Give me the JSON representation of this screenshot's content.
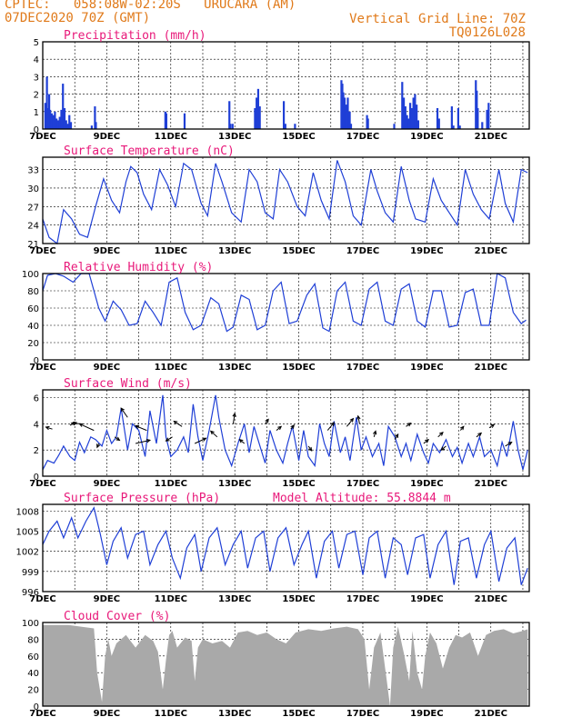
{
  "header": {
    "line1_left": "CPTEC:   058:08W-02:20S   URUCARA (AM)",
    "line2_left": "07DEC2020 70Z (GMT)",
    "line1_right": "Vertical Grid Line: 70Z",
    "line2_right": "TQ0126L028"
  },
  "colors": {
    "header": "#e07a1a",
    "title": "#e8197a",
    "series": "#1f3fd6",
    "cloud": "#a9a9a9"
  },
  "x_ticks": [
    "7DEC",
    "9DEC",
    "11DEC",
    "13DEC",
    "15DEC",
    "17DEC",
    "19DEC",
    "21DEC"
  ],
  "chart_data": [
    {
      "type": "bar",
      "title": "Precipitation (mm/h)",
      "ylim": [
        0,
        5
      ],
      "yticks": [
        0,
        1,
        2,
        3,
        4,
        5
      ],
      "x_range": [
        7,
        22.2
      ],
      "bars": [
        [
          7.05,
          1.5
        ],
        [
          7.1,
          3.0
        ],
        [
          7.13,
          1.2
        ],
        [
          7.17,
          2.0
        ],
        [
          7.2,
          1.1
        ],
        [
          7.25,
          0.9
        ],
        [
          7.3,
          0.8
        ],
        [
          7.35,
          1.0
        ],
        [
          7.4,
          0.6
        ],
        [
          7.45,
          0.5
        ],
        [
          7.5,
          0.7
        ],
        [
          7.55,
          1.1
        ],
        [
          7.6,
          2.6
        ],
        [
          7.65,
          1.2
        ],
        [
          7.7,
          0.5
        ],
        [
          7.75,
          0.3
        ],
        [
          7.8,
          0.8
        ],
        [
          7.85,
          0.4
        ],
        [
          8.5,
          0.2
        ],
        [
          8.6,
          1.3
        ],
        [
          8.63,
          0.4
        ],
        [
          10.8,
          1.0
        ],
        [
          10.83,
          0.9
        ],
        [
          11.4,
          0.9
        ],
        [
          12.8,
          1.6
        ],
        [
          12.83,
          0.3
        ],
        [
          12.9,
          0.3
        ],
        [
          13.6,
          1.2
        ],
        [
          13.65,
          1.8
        ],
        [
          13.7,
          2.3
        ],
        [
          13.75,
          1.3
        ],
        [
          14.5,
          1.6
        ],
        [
          14.55,
          0.3
        ],
        [
          14.85,
          0.3
        ],
        [
          16.3,
          2.8
        ],
        [
          16.33,
          2.6
        ],
        [
          16.36,
          2.1
        ],
        [
          16.4,
          1.8
        ],
        [
          16.43,
          1.3
        ],
        [
          16.46,
          1.4
        ],
        [
          16.5,
          1.8
        ],
        [
          16.53,
          0.9
        ],
        [
          16.56,
          1.0
        ],
        [
          16.6,
          0.3
        ],
        [
          17.1,
          0.8
        ],
        [
          17.13,
          0.6
        ],
        [
          17.95,
          0.3
        ],
        [
          18.2,
          2.7
        ],
        [
          18.25,
          1.8
        ],
        [
          18.3,
          1.3
        ],
        [
          18.35,
          0.8
        ],
        [
          18.4,
          0.6
        ],
        [
          18.45,
          1.5
        ],
        [
          18.5,
          1.2
        ],
        [
          18.55,
          1.8
        ],
        [
          18.6,
          2.0
        ],
        [
          18.65,
          1.4
        ],
        [
          18.7,
          0.5
        ],
        [
          19.3,
          1.2
        ],
        [
          19.35,
          0.6
        ],
        [
          19.75,
          1.3
        ],
        [
          19.8,
          0.2
        ],
        [
          19.95,
          1.2
        ],
        [
          20.0,
          0.2
        ],
        [
          20.5,
          2.8
        ],
        [
          20.53,
          2.2
        ],
        [
          20.56,
          1.2
        ],
        [
          20.7,
          0.4
        ],
        [
          20.85,
          1.1
        ],
        [
          20.9,
          1.5
        ]
      ]
    },
    {
      "type": "line",
      "title": "Surface Temperature (nC)",
      "ylim": [
        21,
        35
      ],
      "yticks": [
        21,
        24,
        27,
        30,
        33
      ],
      "x_range": [
        7,
        22.2
      ],
      "x": [
        7,
        7.2,
        7.45,
        7.65,
        7.9,
        8.15,
        8.4,
        8.65,
        8.9,
        9.15,
        9.4,
        9.6,
        9.75,
        9.95,
        10.15,
        10.4,
        10.65,
        10.9,
        11.15,
        11.4,
        11.65,
        11.95,
        12.15,
        12.4,
        12.6,
        12.9,
        13.2,
        13.45,
        13.7,
        13.95,
        14.2,
        14.4,
        14.65,
        14.95,
        15.2,
        15.45,
        15.7,
        15.95,
        16.2,
        16.45,
        16.7,
        16.95,
        17.25,
        17.45,
        17.7,
        17.95,
        18.2,
        18.45,
        18.65,
        18.95,
        19.2,
        19.45,
        19.7,
        19.95,
        20.2,
        20.45,
        20.7,
        20.95,
        21.25,
        21.45,
        21.7,
        21.95,
        22.15
      ],
      "y": [
        25,
        22,
        21,
        26.5,
        25,
        22.5,
        22,
        27,
        31.5,
        28,
        26,
        31,
        33.5,
        32.5,
        29,
        26.5,
        33,
        30.5,
        27,
        34,
        33,
        27.5,
        25.5,
        34,
        31,
        26,
        24.5,
        33,
        31,
        26,
        25,
        33,
        31,
        27,
        25.5,
        32.5,
        28,
        25,
        34.5,
        31,
        25.5,
        24,
        33,
        29.5,
        26,
        24.5,
        33.5,
        28,
        25,
        24.5,
        31.5,
        28,
        26,
        24,
        33,
        29,
        26.5,
        25,
        33,
        27.5,
        24.5,
        33,
        32.5
      ]
    },
    {
      "type": "line",
      "title": "Relative Humidity (%)",
      "ylim": [
        0,
        100
      ],
      "yticks": [
        0,
        20,
        40,
        60,
        80,
        100
      ],
      "x_range": [
        7,
        22.2
      ],
      "x": [
        7,
        7.15,
        7.4,
        7.65,
        7.95,
        8.2,
        8.45,
        8.75,
        8.95,
        9.2,
        9.45,
        9.7,
        9.95,
        10.2,
        10.45,
        10.7,
        10.95,
        11.2,
        11.45,
        11.7,
        11.95,
        12.25,
        12.5,
        12.75,
        12.95,
        13.2,
        13.45,
        13.7,
        13.95,
        14.2,
        14.45,
        14.7,
        14.95,
        15.25,
        15.5,
        15.75,
        15.95,
        16.2,
        16.45,
        16.7,
        16.95,
        17.2,
        17.45,
        17.7,
        17.95,
        18.2,
        18.45,
        18.7,
        18.95,
        19.2,
        19.45,
        19.7,
        19.95,
        20.2,
        20.45,
        20.7,
        20.95,
        21.2,
        21.45,
        21.7,
        21.95,
        22.1
      ],
      "y": [
        80,
        98,
        100,
        97,
        90,
        100,
        100,
        60,
        45,
        68,
        58,
        40,
        42,
        68,
        55,
        40,
        90,
        95,
        55,
        35,
        40,
        72,
        65,
        33,
        38,
        75,
        70,
        35,
        40,
        80,
        90,
        42,
        45,
        75,
        88,
        37,
        33,
        80,
        90,
        45,
        40,
        82,
        90,
        45,
        40,
        82,
        88,
        45,
        38,
        80,
        80,
        38,
        40,
        78,
        82,
        40,
        40,
        100,
        95,
        55,
        42,
        46
      ]
    },
    {
      "type": "line",
      "title": "Surface Wind (m/s)",
      "ylim": [
        0,
        6.6
      ],
      "yticks": [
        0,
        2,
        4,
        6
      ],
      "x_range": [
        7,
        22.2
      ],
      "x": [
        7,
        7.15,
        7.35,
        7.5,
        7.65,
        7.85,
        8.0,
        8.15,
        8.3,
        8.5,
        8.65,
        8.85,
        9.0,
        9.15,
        9.3,
        9.45,
        9.65,
        9.8,
        10.0,
        10.2,
        10.35,
        10.55,
        10.75,
        10.85,
        11.0,
        11.2,
        11.4,
        11.55,
        11.7,
        11.85,
        12.0,
        12.2,
        12.4,
        12.5,
        12.7,
        12.9,
        13.1,
        13.3,
        13.45,
        13.6,
        13.8,
        13.95,
        14.1,
        14.3,
        14.5,
        14.65,
        14.8,
        15.0,
        15.15,
        15.3,
        15.5,
        15.65,
        15.8,
        15.95,
        16.1,
        16.3,
        16.45,
        16.6,
        16.8,
        16.95,
        17.1,
        17.3,
        17.5,
        17.65,
        17.8,
        18.0,
        18.2,
        18.35,
        18.5,
        18.7,
        18.9,
        19.05,
        19.2,
        19.4,
        19.6,
        19.8,
        19.95,
        20.1,
        20.3,
        20.45,
        20.65,
        20.8,
        21.0,
        21.2,
        21.35,
        21.5,
        21.7,
        21.85,
        22.0,
        22.15
      ],
      "y": [
        0.5,
        1.2,
        1.0,
        1.6,
        2.3,
        1.5,
        1.2,
        2.6,
        1.8,
        3.0,
        2.8,
        2.3,
        3.5,
        2.5,
        3.0,
        5.2,
        2.0,
        4.0,
        3.5,
        1.5,
        5.0,
        2.5,
        6.2,
        3.0,
        1.5,
        2.0,
        3.0,
        1.8,
        5.5,
        3.0,
        1.2,
        3.5,
        6.2,
        4.5,
        2.0,
        0.8,
        2.5,
        4.0,
        1.8,
        3.8,
        2.2,
        1.0,
        3.5,
        2.0,
        1.0,
        2.5,
        3.8,
        1.2,
        3.5,
        1.5,
        0.8,
        4.0,
        2.5,
        1.5,
        4.2,
        1.8,
        3.0,
        1.2,
        4.5,
        2.0,
        3.0,
        1.5,
        2.5,
        0.8,
        3.8,
        3.0,
        1.5,
        2.5,
        1.2,
        3.2,
        1.8,
        1.0,
        2.5,
        1.8,
        2.8,
        1.5,
        2.2,
        1.0,
        2.5,
        1.5,
        3.0,
        1.5,
        2.0,
        0.8,
        2.6,
        1.5,
        4.2,
        2.0,
        0.5,
        2.0
      ],
      "arrows": [
        [
          7.3,
          3.6,
          -0.2,
          0.15
        ],
        [
          7.85,
          3.9,
          0.2,
          0.2
        ],
        [
          8.2,
          4.0,
          -0.3,
          0.05
        ],
        [
          8.6,
          3.5,
          -0.45,
          0.5
        ],
        [
          8.75,
          2.5,
          -0.05,
          -0.3
        ],
        [
          9.25,
          3.0,
          0.15,
          -0.25
        ],
        [
          9.65,
          4.5,
          -0.2,
          0.7
        ],
        [
          9.9,
          2.5,
          0.45,
          0.25
        ],
        [
          10.25,
          3.5,
          -0.35,
          0.35
        ],
        [
          11.05,
          3.0,
          -0.2,
          -0.3
        ],
        [
          11.35,
          3.8,
          -0.25,
          0.4
        ],
        [
          11.75,
          2.5,
          0.35,
          0.4
        ],
        [
          12.45,
          3.0,
          -0.2,
          0.45
        ],
        [
          12.95,
          4.0,
          0.05,
          0.8
        ],
        [
          13.3,
          2.5,
          -0.15,
          0.3
        ],
        [
          13.95,
          4.0,
          0.1,
          0.35
        ],
        [
          14.3,
          3.5,
          0.15,
          0.3
        ],
        [
          14.75,
          3.6,
          0.1,
          0.3
        ],
        [
          15.3,
          2.3,
          0.1,
          -0.35
        ],
        [
          15.9,
          3.5,
          0.2,
          0.6
        ],
        [
          16.5,
          3.8,
          0.2,
          0.6
        ],
        [
          16.9,
          4.0,
          -0.05,
          0.6
        ],
        [
          17.35,
          3.0,
          0.05,
          0.45
        ],
        [
          18.0,
          2.8,
          0.1,
          0.4
        ],
        [
          18.35,
          3.8,
          0.15,
          0.25
        ],
        [
          18.9,
          2.5,
          0.15,
          0.3
        ],
        [
          19.35,
          3.0,
          0.15,
          0.35
        ],
        [
          19.6,
          2.3,
          -0.15,
          -0.3
        ],
        [
          20.05,
          3.5,
          0.1,
          0.3
        ],
        [
          20.55,
          3.0,
          0.15,
          0.3
        ],
        [
          20.95,
          3.7,
          0.15,
          0.25
        ],
        [
          21.45,
          2.3,
          0.2,
          0.3
        ]
      ]
    },
    {
      "type": "line",
      "title": "Surface Pressure (hPa)",
      "annotation": "Model Altitude: 55.8844 m",
      "ylim": [
        996,
        1009
      ],
      "yticks": [
        996,
        999,
        1002,
        1005,
        1008
      ],
      "x_range": [
        7,
        22.2
      ],
      "x": [
        7,
        7.2,
        7.45,
        7.65,
        7.9,
        8.1,
        8.35,
        8.6,
        8.8,
        9.0,
        9.2,
        9.45,
        9.65,
        9.9,
        10.15,
        10.35,
        10.6,
        10.85,
        11.05,
        11.3,
        11.5,
        11.75,
        11.95,
        12.2,
        12.45,
        12.7,
        12.95,
        13.2,
        13.4,
        13.65,
        13.9,
        14.1,
        14.35,
        14.6,
        14.85,
        15.1,
        15.3,
        15.55,
        15.8,
        16.05,
        16.25,
        16.5,
        16.75,
        17.0,
        17.2,
        17.45,
        17.7,
        17.95,
        18.2,
        18.4,
        18.65,
        18.9,
        19.1,
        19.35,
        19.6,
        19.85,
        20.05,
        20.3,
        20.55,
        20.8,
        21.0,
        21.25,
        21.5,
        21.75,
        21.95,
        22.15
      ],
      "y": [
        1003,
        1005,
        1006.5,
        1004,
        1007,
        1004,
        1006.5,
        1008.5,
        1004.5,
        1000,
        1003.5,
        1005.5,
        1001,
        1004.5,
        1005,
        1000,
        1003,
        1005,
        1001,
        998,
        1002.5,
        1004.5,
        999,
        1004,
        1005.5,
        1000,
        1003,
        1005,
        999.5,
        1004,
        1005,
        999,
        1004,
        1005.5,
        1000,
        1003,
        1005,
        998,
        1003.5,
        1005,
        999.5,
        1004.5,
        1005,
        998.5,
        1004,
        1005,
        998,
        1004,
        1003,
        998.5,
        1004,
        1004.5,
        998,
        1003,
        1005,
        997,
        1003.5,
        1004,
        998,
        1003,
        1005,
        997.5,
        1002.5,
        1004,
        997,
        999.5
      ]
    },
    {
      "type": "area",
      "title": "Cloud Cover (%)",
      "ylim": [
        0,
        100
      ],
      "yticks": [
        0,
        20,
        40,
        60,
        80,
        100
      ],
      "x_range": [
        7,
        22.2
      ],
      "x": [
        7,
        7.8,
        8.6,
        8.7,
        8.85,
        8.95,
        9.05,
        9.15,
        9.3,
        9.6,
        9.9,
        10.2,
        10.45,
        10.6,
        10.75,
        10.85,
        10.95,
        11.05,
        11.2,
        11.45,
        11.65,
        11.75,
        11.85,
        12.0,
        12.3,
        12.6,
        12.85,
        13.1,
        13.4,
        13.7,
        14.0,
        14.3,
        14.6,
        14.9,
        15.3,
        15.7,
        16.1,
        16.5,
        16.85,
        17.05,
        17.2,
        17.35,
        17.55,
        17.75,
        17.85,
        17.95,
        18.1,
        18.3,
        18.45,
        18.55,
        18.7,
        18.85,
        18.95,
        19.1,
        19.3,
        19.5,
        19.7,
        19.9,
        20.1,
        20.35,
        20.6,
        20.85,
        21.1,
        21.4,
        21.7,
        22.0,
        22.15
      ],
      "y": [
        97,
        97,
        93,
        40,
        5,
        60,
        80,
        60,
        75,
        85,
        70,
        85,
        78,
        65,
        20,
        55,
        85,
        90,
        70,
        82,
        78,
        30,
        70,
        80,
        75,
        78,
        70,
        88,
        90,
        85,
        88,
        80,
        75,
        88,
        92,
        90,
        93,
        95,
        92,
        80,
        20,
        70,
        88,
        30,
        0,
        70,
        95,
        60,
        30,
        90,
        40,
        20,
        60,
        88,
        75,
        45,
        70,
        85,
        82,
        88,
        60,
        85,
        90,
        92,
        87,
        90,
        92
      ]
    }
  ]
}
